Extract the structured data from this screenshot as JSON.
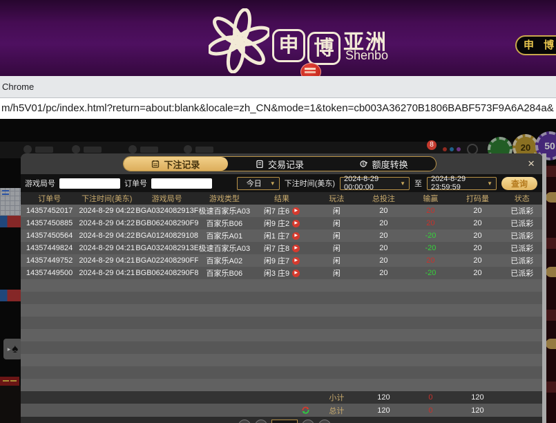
{
  "brand": {
    "char1": "申",
    "char2": "博",
    "region": "亚洲",
    "name_en": "Shenbo",
    "header_button": "申 博"
  },
  "browser": {
    "chrome_label": "Chrome",
    "url": "m/h5V01/pc/index.html?return=about:blank&locale=zh_CN&mode=1&token=cb003A36270B1806BABF573F9A6A284a&"
  },
  "lobby": {
    "notice_count": "8",
    "chip_gold": "20",
    "chip_purple": "50"
  },
  "icons": {
    "close": "×",
    "dropdown": "▼",
    "play": "▶",
    "spade": "♠",
    "expand_arrow": "▸"
  },
  "modal": {
    "tabs": [
      {
        "label": "下注记录",
        "active": true
      },
      {
        "label": "交易记录",
        "active": false
      },
      {
        "label": "额度转换",
        "active": false
      }
    ],
    "filters": {
      "game_round_label": "游戏局号",
      "order_no_label": "订单号",
      "range_select": "今日",
      "bet_time_label": "下注时间(美东)",
      "time_from": "2024-8-29 00:00:00",
      "to_label": "至",
      "time_to": "2024-8-29 23:59:59",
      "search_button": "查询"
    },
    "table": {
      "headers": [
        "订单号",
        "下注时间(美东)",
        "游戏局号",
        "游戏类型",
        "结果",
        "玩法",
        "总投注",
        "输赢",
        "打码量",
        "状态"
      ],
      "rows": [
        {
          "order": "14357452017",
          "time": "2024-8-29 04:22",
          "round": "BGA0324082913F",
          "game": "极速百家乐A03",
          "result": "闲7 庄6",
          "play": "闲",
          "total": "20",
          "winloss": "20",
          "wl_color": "red",
          "turnover": "20",
          "status": "已派彩"
        },
        {
          "order": "14357450885",
          "time": "2024-8-29 04:22",
          "round": "BGB062408290F9",
          "game": "百家乐B06",
          "result": "闲9 庄2",
          "play": "闲",
          "total": "20",
          "winloss": "20",
          "wl_color": "red",
          "turnover": "20",
          "status": "已派彩"
        },
        {
          "order": "14357450564",
          "time": "2024-8-29 04:22",
          "round": "BGA01240829108",
          "game": "百家乐A01",
          "result": "闲1 庄7",
          "play": "闲",
          "total": "20",
          "winloss": "-20",
          "wl_color": "green",
          "turnover": "20",
          "status": "已派彩"
        },
        {
          "order": "14357449824",
          "time": "2024-8-29 04:21",
          "round": "BGA0324082913E",
          "game": "极速百家乐A03",
          "result": "闲7 庄8",
          "play": "闲",
          "total": "20",
          "winloss": "-20",
          "wl_color": "green",
          "turnover": "20",
          "status": "已派彩"
        },
        {
          "order": "14357449752",
          "time": "2024-8-29 04:21",
          "round": "BGA022408290FF",
          "game": "百家乐A02",
          "result": "闲9 庄7",
          "play": "闲",
          "total": "20",
          "winloss": "20",
          "wl_color": "red",
          "turnover": "20",
          "status": "已派彩"
        },
        {
          "order": "14357449500",
          "time": "2024-8-29 04:21",
          "round": "BGB062408290F8",
          "game": "百家乐B06",
          "result": "闲3 庄9",
          "play": "闲",
          "total": "20",
          "winloss": "-20",
          "wl_color": "green",
          "turnover": "20",
          "status": "已派彩"
        }
      ],
      "subtotal": {
        "label": "小计",
        "total": "120",
        "winloss": "0",
        "turnover": "120"
      },
      "grandtotal": {
        "label": "总计",
        "total": "120",
        "winloss": "0",
        "turnover": "120"
      }
    }
  },
  "colors": {
    "brand_purple": "#4a0e58",
    "accent_gold": "#d9a855",
    "win_red": "#c9312b",
    "loss_green": "#35d43a",
    "header_text_gold": "#c9ab6e"
  }
}
